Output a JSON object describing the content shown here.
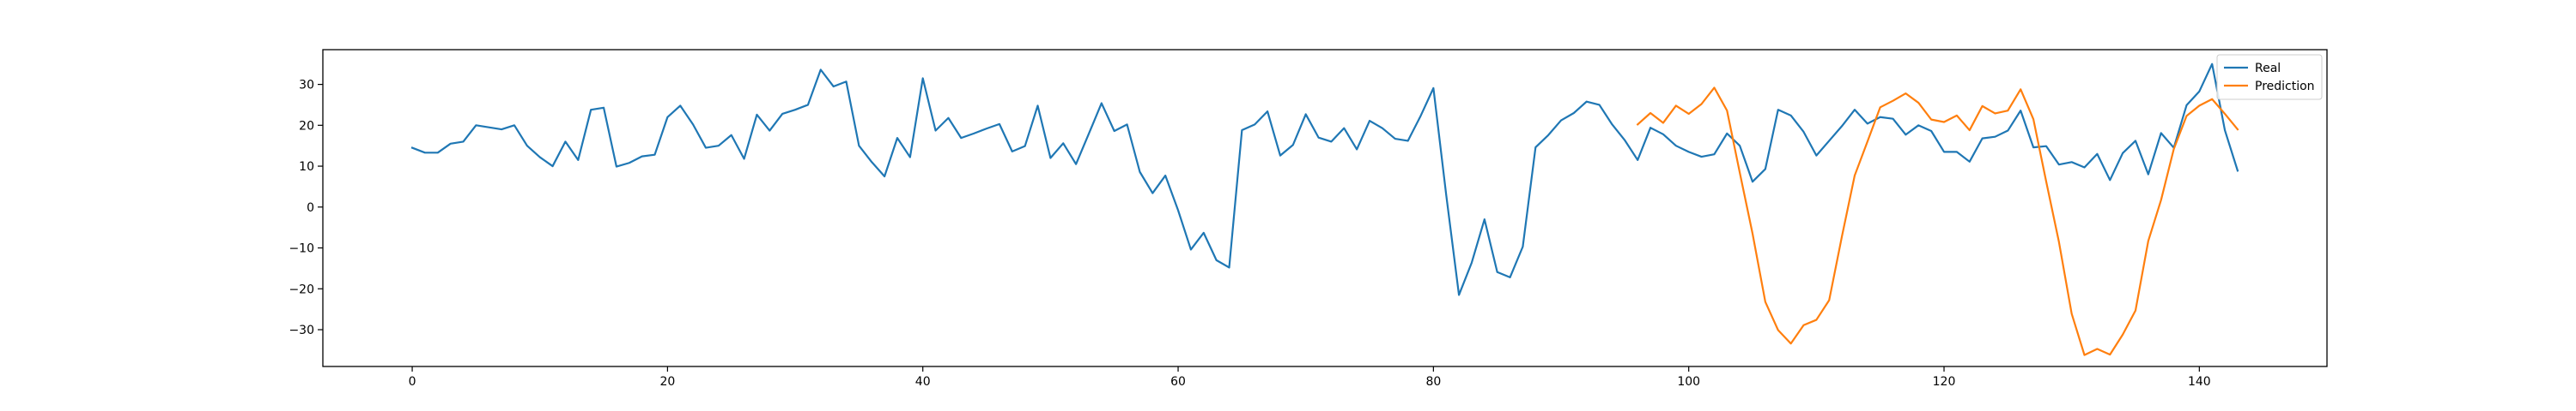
{
  "chart_data": {
    "type": "line",
    "title": "",
    "xlabel": "",
    "ylabel": "",
    "xlim": [
      -7,
      150
    ],
    "ylim": [
      -39,
      38.5
    ],
    "xticks": [
      0,
      20,
      40,
      60,
      80,
      100,
      120,
      140
    ],
    "yticks": [
      -30,
      -20,
      -10,
      0,
      10,
      20,
      30
    ],
    "grid": false,
    "legend_position": "top-right",
    "series": [
      {
        "name": "Real",
        "color": "#1f77b4",
        "x_start": 0,
        "values": [
          14.5,
          13.3,
          13.3,
          15.5,
          16.0,
          20.0,
          19.5,
          19.0,
          20.0,
          15.0,
          12.2,
          10.0,
          16.0,
          11.5,
          23.8,
          24.3,
          9.9,
          10.8,
          12.4,
          12.8,
          22.0,
          24.8,
          20.2,
          14.5,
          15.0,
          17.6,
          11.8,
          22.6,
          18.7,
          22.8,
          23.8,
          25.0,
          33.6,
          29.5,
          30.7,
          15.0,
          11.0,
          7.5,
          16.9,
          12.2,
          31.5,
          18.7,
          21.8,
          16.9,
          18.0,
          19.2,
          20.3,
          13.6,
          14.9,
          24.8,
          12.0,
          15.6,
          10.5,
          17.9,
          25.4,
          18.6,
          20.2,
          8.6,
          3.4,
          7.7,
          -0.8,
          -10.4,
          -6.3,
          -13.0,
          -14.8,
          18.8,
          20.2,
          23.4,
          12.6,
          15.2,
          22.7,
          17.0,
          16.0,
          19.3,
          14.1,
          21.1,
          19.3,
          16.7,
          16.2,
          22.3,
          29.1,
          3.0,
          -21.5,
          -13.6,
          -3.0,
          -15.9,
          -17.2,
          -9.7,
          14.6,
          17.6,
          21.2,
          23.0,
          25.8,
          25.0,
          20.2,
          16.3,
          11.5,
          19.4,
          17.8,
          15.0,
          13.5,
          12.3,
          12.9,
          18.0,
          15.0,
          6.2,
          9.3,
          23.8,
          22.4,
          18.4,
          12.6,
          16.2,
          19.8,
          23.8,
          20.4,
          22.0,
          21.6,
          17.7,
          20.0,
          18.6,
          13.5,
          13.5,
          11.1,
          16.8,
          17.2,
          18.7,
          23.6,
          14.6,
          14.9,
          10.4,
          11.0,
          9.7,
          13.0,
          6.6,
          13.2,
          16.2,
          8.0,
          18.1,
          14.5,
          24.9,
          28.3,
          35.0,
          18.8,
          8.9
        ]
      },
      {
        "name": "Prediction",
        "color": "#ff7f0e",
        "x_start": 96,
        "values": [
          20.2,
          23.0,
          20.6,
          24.8,
          22.8,
          25.2,
          29.2,
          23.6,
          8.4,
          -6.5,
          -23.2,
          -30.1,
          -33.4,
          -28.9,
          -27.6,
          -22.8,
          -7.2,
          7.7,
          16.0,
          24.4,
          26.0,
          27.8,
          25.5,
          21.4,
          20.8,
          22.4,
          18.8,
          24.7,
          22.9,
          23.6,
          28.8,
          21.5,
          6.3,
          -8.5,
          -26.1,
          -36.2,
          -34.7,
          -36.1,
          -31.2,
          -25.3,
          -8.3,
          1.7,
          14.2,
          22.3,
          24.8,
          26.4,
          22.8,
          19.0
        ]
      }
    ]
  }
}
